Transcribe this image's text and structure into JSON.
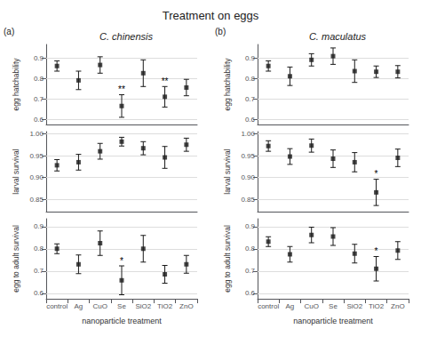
{
  "title": "Treatment on eggs",
  "chart_data": [
    {
      "type": "scatter",
      "title": "C. chinensis",
      "marker": "square",
      "color": "#1a1a1a",
      "grid": true,
      "tick_labels": "y",
      "categories": [
        "control",
        "Ag",
        "CuO",
        "Se",
        "SiO2",
        "TiO2",
        "ZnO"
      ],
      "values": [
        0.86,
        0.79,
        0.865,
        0.665,
        0.825,
        0.71,
        0.755
      ],
      "errors": [
        0.025,
        0.045,
        0.04,
        0.055,
        0.065,
        0.05,
        0.04
      ],
      "ylim": [
        0.575,
        0.965
      ],
      "yticks": [
        0.6,
        0.7,
        0.8,
        0.9
      ],
      "ylabel": "egg hatchability",
      "annotations": [
        {
          "text": "(a)"
        },
        {
          "category": "Se",
          "text": "**"
        },
        {
          "category": "TiO2",
          "text": "**"
        }
      ]
    },
    {
      "type": "scatter",
      "marker": "square",
      "color": "#1a1a1a",
      "grid": true,
      "tick_labels": "y",
      "categories": [
        "control",
        "Ag",
        "CuO",
        "Se",
        "SiO2",
        "TiO2",
        "ZnO"
      ],
      "values": [
        0.928,
        0.935,
        0.96,
        0.982,
        0.967,
        0.946,
        0.975
      ],
      "errors": [
        0.013,
        0.018,
        0.018,
        0.01,
        0.015,
        0.025,
        0.015
      ],
      "ylim": [
        0.822,
        1.005
      ],
      "yticks": [
        0.85,
        {
          "value": 0.9,
          "label": "0.90"
        },
        0.95,
        {
          "value": 1,
          "label": "1.00"
        }
      ],
      "ylabel": "larval survival"
    },
    {
      "type": "scatter",
      "marker": "square",
      "color": "#1a1a1a",
      "grid": true,
      "categories": [
        "control",
        "Ag",
        "CuO",
        "Se",
        "SiO2",
        "TiO2",
        "ZnO"
      ],
      "values": [
        0.8,
        0.73,
        0.825,
        0.658,
        0.8,
        0.685,
        0.73
      ],
      "errors": [
        0.022,
        0.042,
        0.055,
        0.065,
        0.06,
        0.04,
        0.04
      ],
      "ylim": [
        0.575,
        0.935
      ],
      "yticks": [
        0.6,
        0.7,
        0.8,
        0.9
      ],
      "ylabel": "egg to adult survival",
      "xlabel": "nanoparticle treatment",
      "annotations": [
        {
          "category": "Se",
          "text": "*"
        }
      ]
    },
    {
      "type": "scatter",
      "title": "C. maculatus",
      "marker": "square",
      "color": "#1a1a1a",
      "grid": true,
      "tick_labels": "y",
      "categories": [
        "control",
        "Ag",
        "CuO",
        "Se",
        "SiO2",
        "TiO2",
        "ZnO"
      ],
      "values": [
        0.86,
        0.81,
        0.89,
        0.908,
        0.835,
        0.832,
        0.832
      ],
      "errors": [
        0.025,
        0.045,
        0.03,
        0.04,
        0.055,
        0.028,
        0.03
      ],
      "ylim": [
        0.575,
        0.965
      ],
      "yticks": [
        0.6,
        0.7,
        0.8,
        0.9
      ],
      "ylabel": "egg hatchability",
      "annotations": [
        {
          "text": "(b)"
        }
      ]
    },
    {
      "type": "scatter",
      "marker": "square",
      "color": "#1a1a1a",
      "grid": true,
      "tick_labels": "y",
      "categories": [
        "control",
        "Ag",
        "CuO",
        "Se",
        "SiO2",
        "TiO2",
        "ZnO"
      ],
      "values": [
        0.972,
        0.948,
        0.973,
        0.943,
        0.935,
        0.866,
        0.945
      ],
      "errors": [
        0.012,
        0.018,
        0.015,
        0.02,
        0.022,
        0.03,
        0.02
      ],
      "ylim": [
        0.822,
        1.005
      ],
      "yticks": [
        0.85,
        {
          "value": 0.9,
          "label": "0.90"
        },
        0.95,
        {
          "value": 1,
          "label": "1.00"
        }
      ],
      "ylabel": "larval survival",
      "annotations": [
        {
          "category": "TiO2",
          "text": "*"
        }
      ]
    },
    {
      "type": "scatter",
      "marker": "square",
      "color": "#1a1a1a",
      "grid": true,
      "categories": [
        "control",
        "Ag",
        "CuO",
        "Se",
        "SiO2",
        "TiO2",
        "ZnO"
      ],
      "values": [
        0.832,
        0.775,
        0.862,
        0.855,
        0.778,
        0.71,
        0.792
      ],
      "errors": [
        0.022,
        0.035,
        0.035,
        0.04,
        0.042,
        0.055,
        0.04
      ],
      "ylim": [
        0.575,
        0.935
      ],
      "yticks": [
        0.6,
        0.7,
        0.8,
        0.9
      ],
      "ylabel": "egg to adult survival",
      "xlabel": "nanoparticle treatment",
      "annotations": [
        {
          "category": "TiO2",
          "text": "*"
        }
      ]
    }
  ]
}
